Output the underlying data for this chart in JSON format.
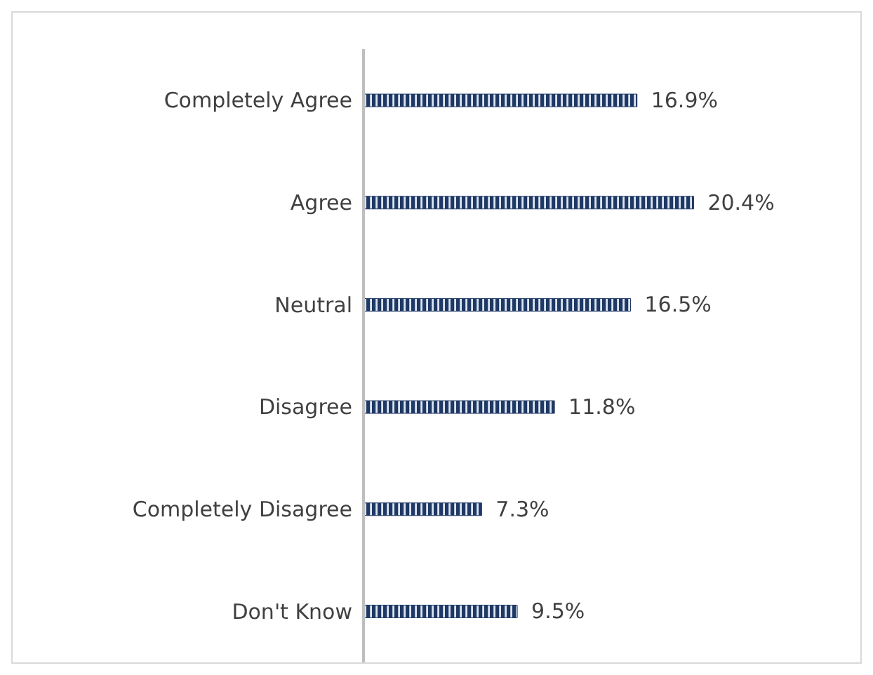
{
  "chart_data": {
    "type": "bar",
    "orientation": "horizontal",
    "categories": [
      "Completely Agree",
      "Agree",
      "Neutral",
      "Disagree",
      "Completely Disagree",
      "Don't Know"
    ],
    "series": [
      {
        "color": "#1f3864",
        "values": [
          16.9,
          20.4,
          16.5,
          11.8,
          7.3,
          9.5
        ],
        "value_labels": [
          "16.9%",
          "20.4%",
          "16.5%",
          "11.8%",
          "7.3%",
          "9.5%"
        ]
      }
    ],
    "grid": false,
    "legend": false
  }
}
